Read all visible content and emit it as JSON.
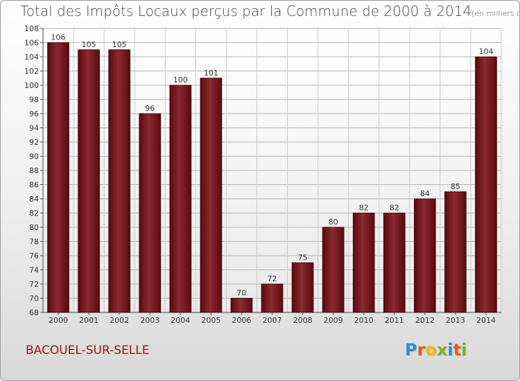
{
  "header": {
    "title": "Total des Impôts Locaux perçus par la Commune de 2000 à 2014",
    "unit": "(en milliers d'€)"
  },
  "footer": {
    "commune": "BACOUEL-SUR-SELLE",
    "logo_letters": [
      "P",
      "r",
      "o",
      "x",
      "i",
      "t",
      "i"
    ],
    "logo_colors": [
      "#2a8fd6",
      "#e85a1b",
      "#f2b705",
      "#7ab51d",
      "#2a8fd6",
      "#e85a1b",
      "#7ab51d"
    ]
  },
  "chart_data": {
    "type": "bar",
    "title": "Total des Impôts Locaux perçus par la Commune de 2000 à 2014",
    "categories": [
      "2000",
      "2001",
      "2002",
      "2003",
      "2004",
      "2005",
      "2006",
      "2007",
      "2008",
      "2009",
      "2010",
      "2011",
      "2012",
      "2013",
      "2014"
    ],
    "values": [
      106,
      105,
      105,
      96,
      100,
      101,
      70,
      72,
      75,
      80,
      82,
      82,
      84,
      85,
      104
    ],
    "xlabel": "",
    "ylabel": "",
    "ylim": [
      68,
      108
    ],
    "yticks": [
      68,
      70,
      72,
      74,
      76,
      78,
      80,
      82,
      84,
      86,
      88,
      90,
      92,
      94,
      96,
      98,
      100,
      102,
      104,
      106,
      108
    ],
    "grid": true,
    "bar_color": "#6b0f14"
  }
}
